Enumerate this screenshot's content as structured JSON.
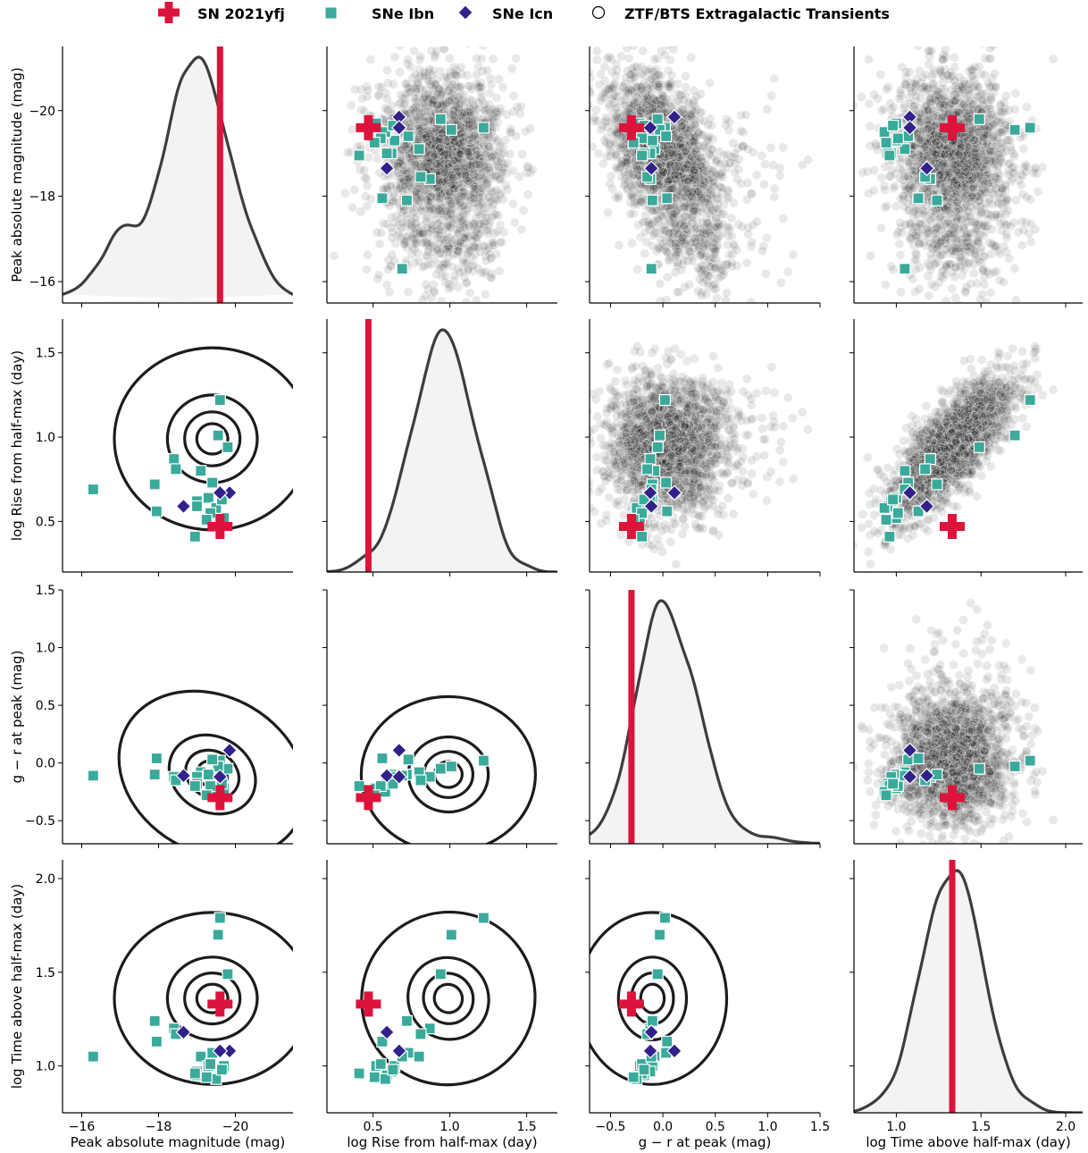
{
  "legend": {
    "placement": "top-center",
    "items": [
      {
        "id": "sn",
        "label": "SN 2021yfj",
        "marker": "cross",
        "color": "#dc143c"
      },
      {
        "id": "ibn",
        "label": "SNe Ibn",
        "marker": "square",
        "color": "#3aaa9a"
      },
      {
        "id": "icn",
        "label": "SNe Icn",
        "marker": "diamond",
        "color": "#33208a"
      },
      {
        "id": "bts",
        "label": "ZTF/BTS Extragalactic Transients",
        "marker": "circle-open",
        "color": "#000000"
      }
    ]
  },
  "colors": {
    "sn": "#dc143c",
    "ibn": "#3aaa9a",
    "icn": "#33208a",
    "bts": "#000000",
    "contour": "#1c1c1c",
    "kde_fill": "#f3f3f3",
    "kde_line": "#3d3d3d"
  },
  "chart_data": {
    "type": "pairplot",
    "variables": [
      {
        "key": "mag",
        "label": "Peak absolute magnitude (mag)",
        "range": [
          -15.5,
          -21.5
        ],
        "ticks": [
          -16,
          -18,
          -20
        ],
        "tick_labels": [
          "−16",
          "−18",
          "−20"
        ]
      },
      {
        "key": "rise",
        "label": "log Rise from half-max (day)",
        "range": [
          0.2,
          1.7
        ],
        "ticks": [
          0.5,
          1.0,
          1.5
        ],
        "tick_labels": [
          "0.5",
          "1.0",
          "1.5"
        ]
      },
      {
        "key": "gr",
        "label": "g − r at peak (mag)",
        "range": [
          -0.7,
          1.5
        ],
        "ticks": [
          -0.5,
          0.0,
          0.5,
          1.0,
          1.5
        ],
        "tick_labels": [
          "−0.5",
          "0.0",
          "0.5",
          "1.0",
          "1.5"
        ]
      },
      {
        "key": "dur",
        "label": "log Time above half-max (day)",
        "range": [
          0.75,
          2.1
        ],
        "ticks": [
          1.0,
          1.5,
          2.0
        ],
        "tick_labels": [
          "1.0",
          "1.5",
          "2.0"
        ]
      }
    ],
    "diagonal": "kde",
    "upper": "scatter",
    "lower": "kde_contours",
    "sn2021yfj": {
      "mag": -19.6,
      "rise": 0.47,
      "gr": -0.3,
      "dur": 1.33
    },
    "snIbn": [
      {
        "mag": -19.6,
        "rise": 1.22,
        "gr": 0.02,
        "dur": 1.79
      },
      {
        "mag": -19.8,
        "rise": 0.94,
        "gr": -0.05,
        "dur": 1.49
      },
      {
        "mag": -19.55,
        "rise": 1.01,
        "gr": -0.03,
        "dur": 1.7
      },
      {
        "mag": -19.4,
        "rise": 0.73,
        "gr": 0.03,
        "dur": 1.07
      },
      {
        "mag": -19.1,
        "rise": 0.8,
        "gr": -0.08,
        "dur": 1.05
      },
      {
        "mag": -19.3,
        "rise": 0.64,
        "gr": -0.1,
        "dur": 1.0
      },
      {
        "mag": -19.0,
        "rise": 0.62,
        "gr": -0.12,
        "dur": 0.97
      },
      {
        "mag": -19.0,
        "rise": 0.59,
        "gr": -0.18,
        "dur": 0.95
      },
      {
        "mag": -18.95,
        "rise": 0.41,
        "gr": -0.2,
        "dur": 0.96
      },
      {
        "mag": -19.7,
        "rise": 0.52,
        "gr": -0.22,
        "dur": 1.0
      },
      {
        "mag": -19.5,
        "rise": 0.58,
        "gr": -0.25,
        "dur": 0.93
      },
      {
        "mag": -19.35,
        "rise": 0.55,
        "gr": -0.2,
        "dur": 1.01
      },
      {
        "mag": -18.4,
        "rise": 0.87,
        "gr": -0.12,
        "dur": 1.2
      },
      {
        "mag": -18.45,
        "rise": 0.81,
        "gr": -0.15,
        "dur": 1.17
      },
      {
        "mag": -17.9,
        "rise": 0.72,
        "gr": -0.1,
        "dur": 1.24
      },
      {
        "mag": -17.95,
        "rise": 0.56,
        "gr": 0.04,
        "dur": 1.13
      },
      {
        "mag": -16.3,
        "rise": 0.69,
        "gr": -0.11,
        "dur": 1.05
      },
      {
        "mag": -19.65,
        "rise": 0.63,
        "gr": -0.18,
        "dur": 0.98
      },
      {
        "mag": -19.25,
        "rise": 0.51,
        "gr": -0.28,
        "dur": 0.94
      }
    ],
    "snIcn": [
      {
        "mag": -19.85,
        "rise": 0.67,
        "gr": 0.11,
        "dur": 1.08
      },
      {
        "mag": -18.65,
        "rise": 0.59,
        "gr": -0.11,
        "dur": 1.18
      },
      {
        "mag": -19.6,
        "rise": 0.67,
        "gr": -0.12,
        "dur": 1.08
      }
    ],
    "bts": {
      "count_shown": 2200,
      "mean": {
        "mag": -19.0,
        "rise": 0.95,
        "gr": 0.0,
        "dur": 1.33
      },
      "std": {
        "mag": 0.9,
        "rise": 0.2,
        "gr": 0.25,
        "dur": 0.17
      },
      "correlation_rise_dur": 0.75,
      "correlation_mag_gr": 0.45
    },
    "kde_peaks": {
      "mag": -19.4,
      "rise": 0.99,
      "gr": -0.1,
      "dur": 1.36
    }
  }
}
